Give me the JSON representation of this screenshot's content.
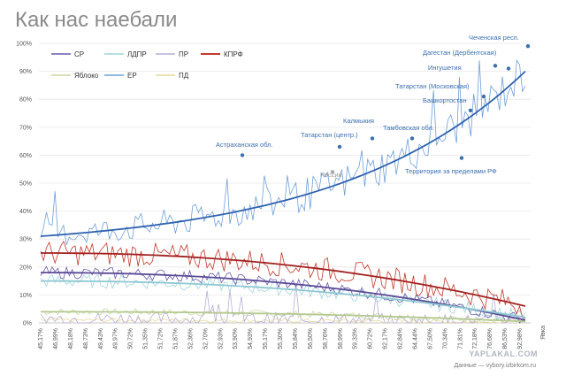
{
  "title": "Как нас наебали",
  "watermark": "YAPLAKAL.COM",
  "source": "Данные — vybory.izbirkom.ru",
  "chart_data": {
    "type": "line",
    "title": "Как нас наебали",
    "xlabel": "Явка",
    "ylabel": "",
    "ylim": [
      0,
      100
    ],
    "yticks": [
      "0%",
      "10%",
      "20%",
      "30%",
      "40%",
      "50%",
      "60%",
      "70%",
      "80%",
      "90%",
      "100%"
    ],
    "xticks": [
      "45,17%",
      "46,99%",
      "48,18%",
      "48,73%",
      "49,43%",
      "49,97%",
      "50,72%",
      "51,35%",
      "51,72%",
      "51,87%",
      "52,36%",
      "52,70%",
      "52,93%",
      "53,90%",
      "54,93%",
      "55,17%",
      "55,30%",
      "55,84%",
      "56,50%",
      "58,76%",
      "58,99%",
      "59,33%",
      "60,72%",
      "62,17%",
      "62,84%",
      "64,44%",
      "67,50%",
      "70,34%",
      "71,81%",
      "72,18%",
      "76,68%",
      "86,53%",
      "92,98%"
    ],
    "legend": [
      "СР",
      "ЛДПР",
      "ПР",
      "КПРФ",
      "Яблоко",
      "ЕР",
      "ПД"
    ],
    "colors": {
      "СР": "#6a5aa8",
      "ЛДПР": "#9fd6dc",
      "ПР": "#b8aed6",
      "КПРФ": "#c0392b",
      "Яблоко": "#c8d8a0",
      "ЕР": "#6f9fd8",
      "ПД": "#e6d898",
      "trend_ep": "#2f62b0",
      "trend_kprf": "#a32020",
      "trend_sr": "#5a4a96",
      "trend_ldpr": "#8ec8d2",
      "trend_yabloko": "#b4c890"
    },
    "series_level": {
      "ЕР": {
        "start": 31,
        "end": 90
      },
      "КПРФ": {
        "start": 25,
        "end": 6
      },
      "ЛДПР": {
        "start": 15,
        "end": 2
      },
      "СР": {
        "start": 18,
        "end": 1
      },
      "Яблоко": {
        "start": 4,
        "end": 0.5
      },
      "ПР": {
        "start": 1.5,
        "end": 0.3
      },
      "ПД": {
        "start": 1,
        "end": 0.2
      }
    },
    "annotations": [
      {
        "text": "Астраханская обл.",
        "value": 60
      },
      {
        "text": "Россия",
        "value": 54
      },
      {
        "text": "Татарстан (центр.)",
        "value": 63
      },
      {
        "text": "Калмыкия",
        "value": 66
      },
      {
        "text": "Тамбовская обл.",
        "value": 66
      },
      {
        "text": "Территория за пределами РФ",
        "value": 59
      },
      {
        "text": "Башкортостан",
        "value": 76
      },
      {
        "text": "Татарстан (Московская)",
        "value": 81
      },
      {
        "text": "Ингушетия",
        "value": 91
      },
      {
        "text": "Дагестан (Дербентская)",
        "value": 92
      },
      {
        "text": "Чеченская респ.",
        "value": 99
      }
    ]
  }
}
